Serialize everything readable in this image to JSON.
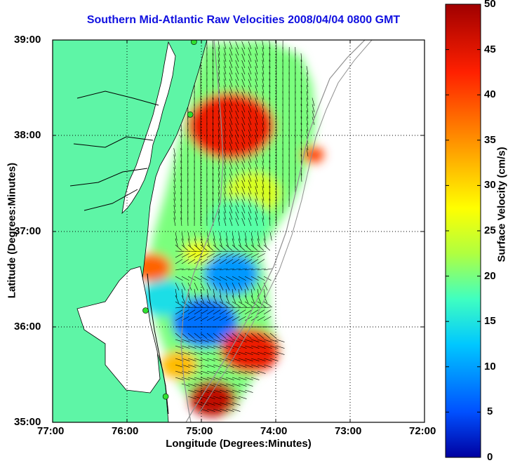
{
  "title": "Southern Mid-Atlantic Raw Velocities 2008/04/04 0800 GMT",
  "x_axis": {
    "label": "Longitude (Degrees:Minutes)",
    "ticks": [
      "77:00",
      "76:00",
      "75:00",
      "74:00",
      "73:00",
      "72:00"
    ]
  },
  "y_axis": {
    "label": "Latitude (Degrees:Minutes)",
    "ticks": [
      "39:00",
      "38:00",
      "37:00",
      "36:00",
      "35:00"
    ]
  },
  "colorbar": {
    "label": "Surface Velocity (cm/s)",
    "ticks": [
      "50",
      "45",
      "40",
      "35",
      "30",
      "25",
      "20",
      "15",
      "10",
      "5",
      "0"
    ],
    "min": 0,
    "max": 50,
    "colormap": [
      "#0000a0",
      "#0050ff",
      "#00c8ff",
      "#40ffc0",
      "#b0ff40",
      "#ffff00",
      "#ff9000",
      "#ff2000",
      "#a00000"
    ]
  },
  "colors": {
    "land": "#5ef5a6",
    "water": "#ffffff",
    "coastline": "#000000",
    "bathymetry": "#909090",
    "title": "#1010e0",
    "grid": "#000000",
    "station_marker": "#30e030"
  },
  "chart_data": {
    "type": "heatmap",
    "title": "Southern Mid-Atlantic Raw Velocities 2008/04/04 0800 GMT",
    "xlabel": "Longitude (Degrees:Minutes)",
    "ylabel": "Latitude (Degrees:Minutes)",
    "colorbar_label": "Surface Velocity (cm/s)",
    "xlim": [
      -77.0,
      -72.0
    ],
    "ylim": [
      35.0,
      39.0
    ],
    "clim": [
      0,
      50
    ],
    "grid": true,
    "regions": [
      {
        "speed": 45,
        "lon": -74.6,
        "lat": 38.1
      },
      {
        "speed": 42,
        "lon": -73.5,
        "lat": 37.8
      },
      {
        "speed": 28,
        "lon": -74.3,
        "lat": 37.4
      },
      {
        "speed": 20,
        "lon": -74.5,
        "lat": 37.1
      },
      {
        "speed": 40,
        "lon": -75.65,
        "lat": 36.62
      },
      {
        "speed": 30,
        "lon": -75.05,
        "lat": 36.78
      },
      {
        "speed": 10,
        "lon": -74.6,
        "lat": 36.55
      },
      {
        "speed": 8,
        "lon": -74.95,
        "lat": 36.05
      },
      {
        "speed": 45,
        "lon": -74.35,
        "lat": 35.75
      },
      {
        "speed": 48,
        "lon": -74.85,
        "lat": 35.25
      },
      {
        "speed": 35,
        "lon": -75.3,
        "lat": 35.6
      },
      {
        "speed": 15,
        "lon": -75.5,
        "lat": 36.3
      }
    ],
    "stations": [
      {
        "lon": -75.1,
        "lat": 38.98
      },
      {
        "lon": -75.15,
        "lat": 38.22
      },
      {
        "lon": -75.75,
        "lat": 36.17
      },
      {
        "lon": -75.48,
        "lat": 35.27
      }
    ]
  }
}
